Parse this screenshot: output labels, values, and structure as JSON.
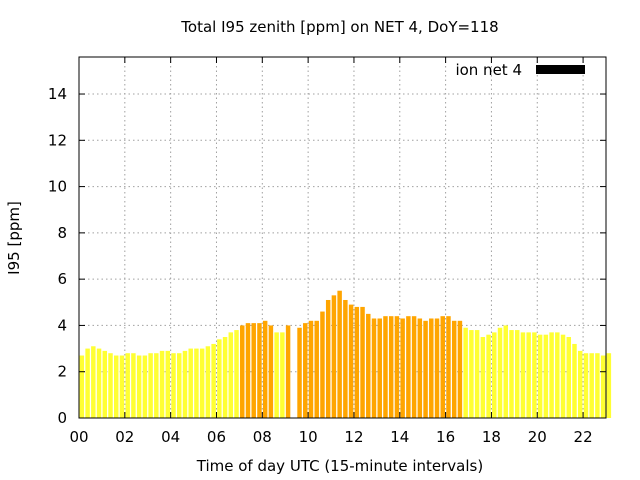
{
  "chart_data": {
    "type": "bar",
    "title": "Total I95 zenith [ppm] on NET 4, DoY=118",
    "xlabel": "Time of day UTC (15-minute intervals)",
    "ylabel": "I95 [ppm]",
    "xlim": [
      0,
      23
    ],
    "ylim": [
      0,
      15.6
    ],
    "x_ticks": [
      "00",
      "02",
      "04",
      "06",
      "08",
      "10",
      "12",
      "14",
      "16",
      "18",
      "20",
      "22"
    ],
    "y_ticks": [
      "0",
      "2",
      "4",
      "6",
      "8",
      "10",
      "12",
      "14"
    ],
    "grid": true,
    "legend": {
      "position": "top-right",
      "entries": [
        {
          "label": "ion net 4",
          "color": "#000000"
        }
      ]
    },
    "bar_interval_hours": 0.25,
    "level_colors": {
      "low": "#ffff33",
      "medium": "#ffa500"
    },
    "series": [
      {
        "name": "ion net 4",
        "values": [
          2.7,
          3.0,
          3.1,
          3.0,
          2.9,
          2.8,
          2.7,
          2.7,
          2.8,
          2.8,
          2.7,
          2.7,
          2.8,
          2.8,
          2.9,
          2.9,
          2.8,
          2.8,
          2.9,
          3.0,
          3.0,
          3.0,
          3.1,
          3.2,
          3.4,
          3.5,
          3.7,
          3.8,
          4.0,
          4.1,
          4.1,
          4.1,
          4.2,
          4.0,
          3.7,
          3.7,
          4.0,
          0.0,
          3.9,
          4.1,
          4.2,
          4.2,
          4.6,
          5.1,
          5.3,
          5.5,
          5.1,
          4.9,
          4.8,
          4.8,
          4.5,
          4.3,
          4.3,
          4.4,
          4.4,
          4.4,
          4.3,
          4.4,
          4.4,
          4.3,
          4.2,
          4.3,
          4.3,
          4.4,
          4.4,
          4.2,
          4.2,
          3.9,
          3.8,
          3.8,
          3.5,
          3.6,
          3.7,
          3.9,
          4.0,
          3.8,
          3.8,
          3.7,
          3.7,
          3.7,
          3.6,
          3.6,
          3.7,
          3.7,
          3.6,
          3.5,
          3.2,
          2.9,
          2.8,
          2.8,
          2.8,
          2.7,
          2.8
        ],
        "levels": [
          "low",
          "low",
          "low",
          "low",
          "low",
          "low",
          "low",
          "low",
          "low",
          "low",
          "low",
          "low",
          "low",
          "low",
          "low",
          "low",
          "low",
          "low",
          "low",
          "low",
          "low",
          "low",
          "low",
          "low",
          "low",
          "low",
          "low",
          "low",
          "medium",
          "medium",
          "medium",
          "medium",
          "medium",
          "medium",
          "low",
          "low",
          "medium",
          "medium",
          "medium",
          "medium",
          "medium",
          "medium",
          "medium",
          "medium",
          "medium",
          "medium",
          "medium",
          "medium",
          "medium",
          "medium",
          "medium",
          "medium",
          "medium",
          "medium",
          "medium",
          "medium",
          "medium",
          "medium",
          "medium",
          "medium",
          "medium",
          "medium",
          "medium",
          "medium",
          "medium",
          "medium",
          "medium",
          "low",
          "low",
          "low",
          "low",
          "low",
          "low",
          "low",
          "low",
          "low",
          "low",
          "low",
          "low",
          "low",
          "low",
          "low",
          "low",
          "low",
          "low",
          "low",
          "low",
          "low",
          "low",
          "low",
          "low",
          "low",
          "low"
        ]
      }
    ]
  }
}
